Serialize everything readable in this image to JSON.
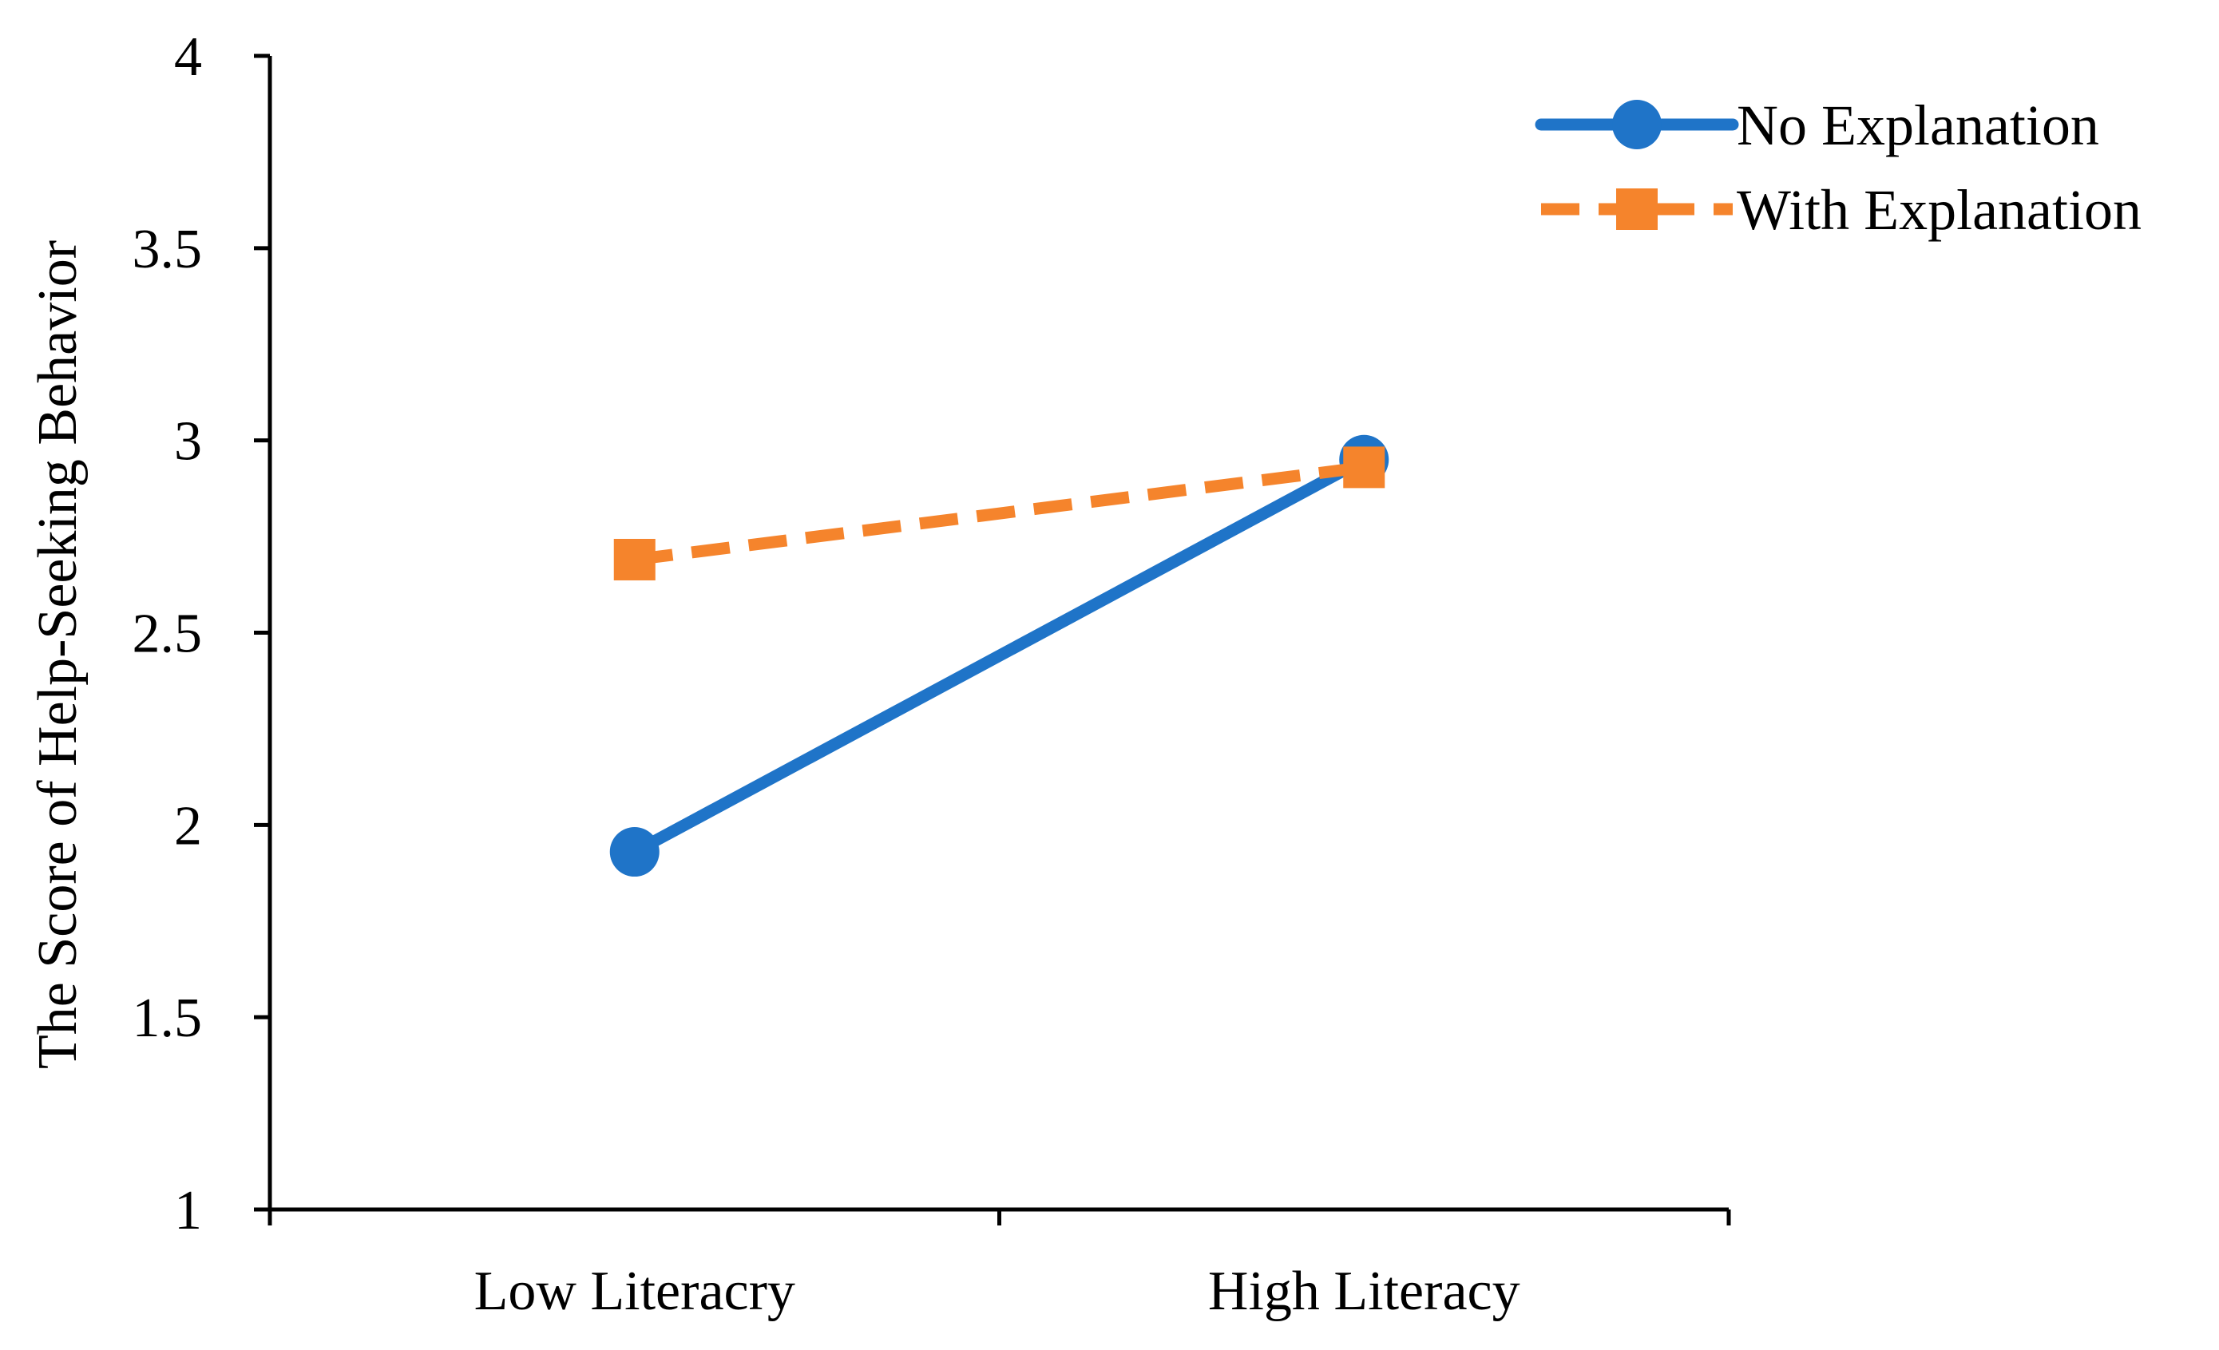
{
  "chart_data": {
    "type": "line",
    "title": "",
    "xlabel": "",
    "ylabel": "The Score of Help-Seeking Behavior",
    "categories": [
      "Low Literacry",
      "High Literacy"
    ],
    "ylim": [
      1,
      4
    ],
    "yticks": [
      "1",
      "1.5",
      "2",
      "2.5",
      "3",
      "3.5",
      "4"
    ],
    "ytick_values": [
      1,
      1.5,
      2,
      2.5,
      3,
      3.5,
      4
    ],
    "grid": false,
    "legend_position": "top-right",
    "series": [
      {
        "name": "No Explanation",
        "values": [
          1.93,
          2.95
        ],
        "color": "#1F74C8",
        "marker": "circle",
        "line_style": "solid"
      },
      {
        "name": "With Explanation",
        "values": [
          2.69,
          2.93
        ],
        "color": "#F5842C",
        "marker": "square",
        "line_style": "dashed"
      }
    ]
  }
}
